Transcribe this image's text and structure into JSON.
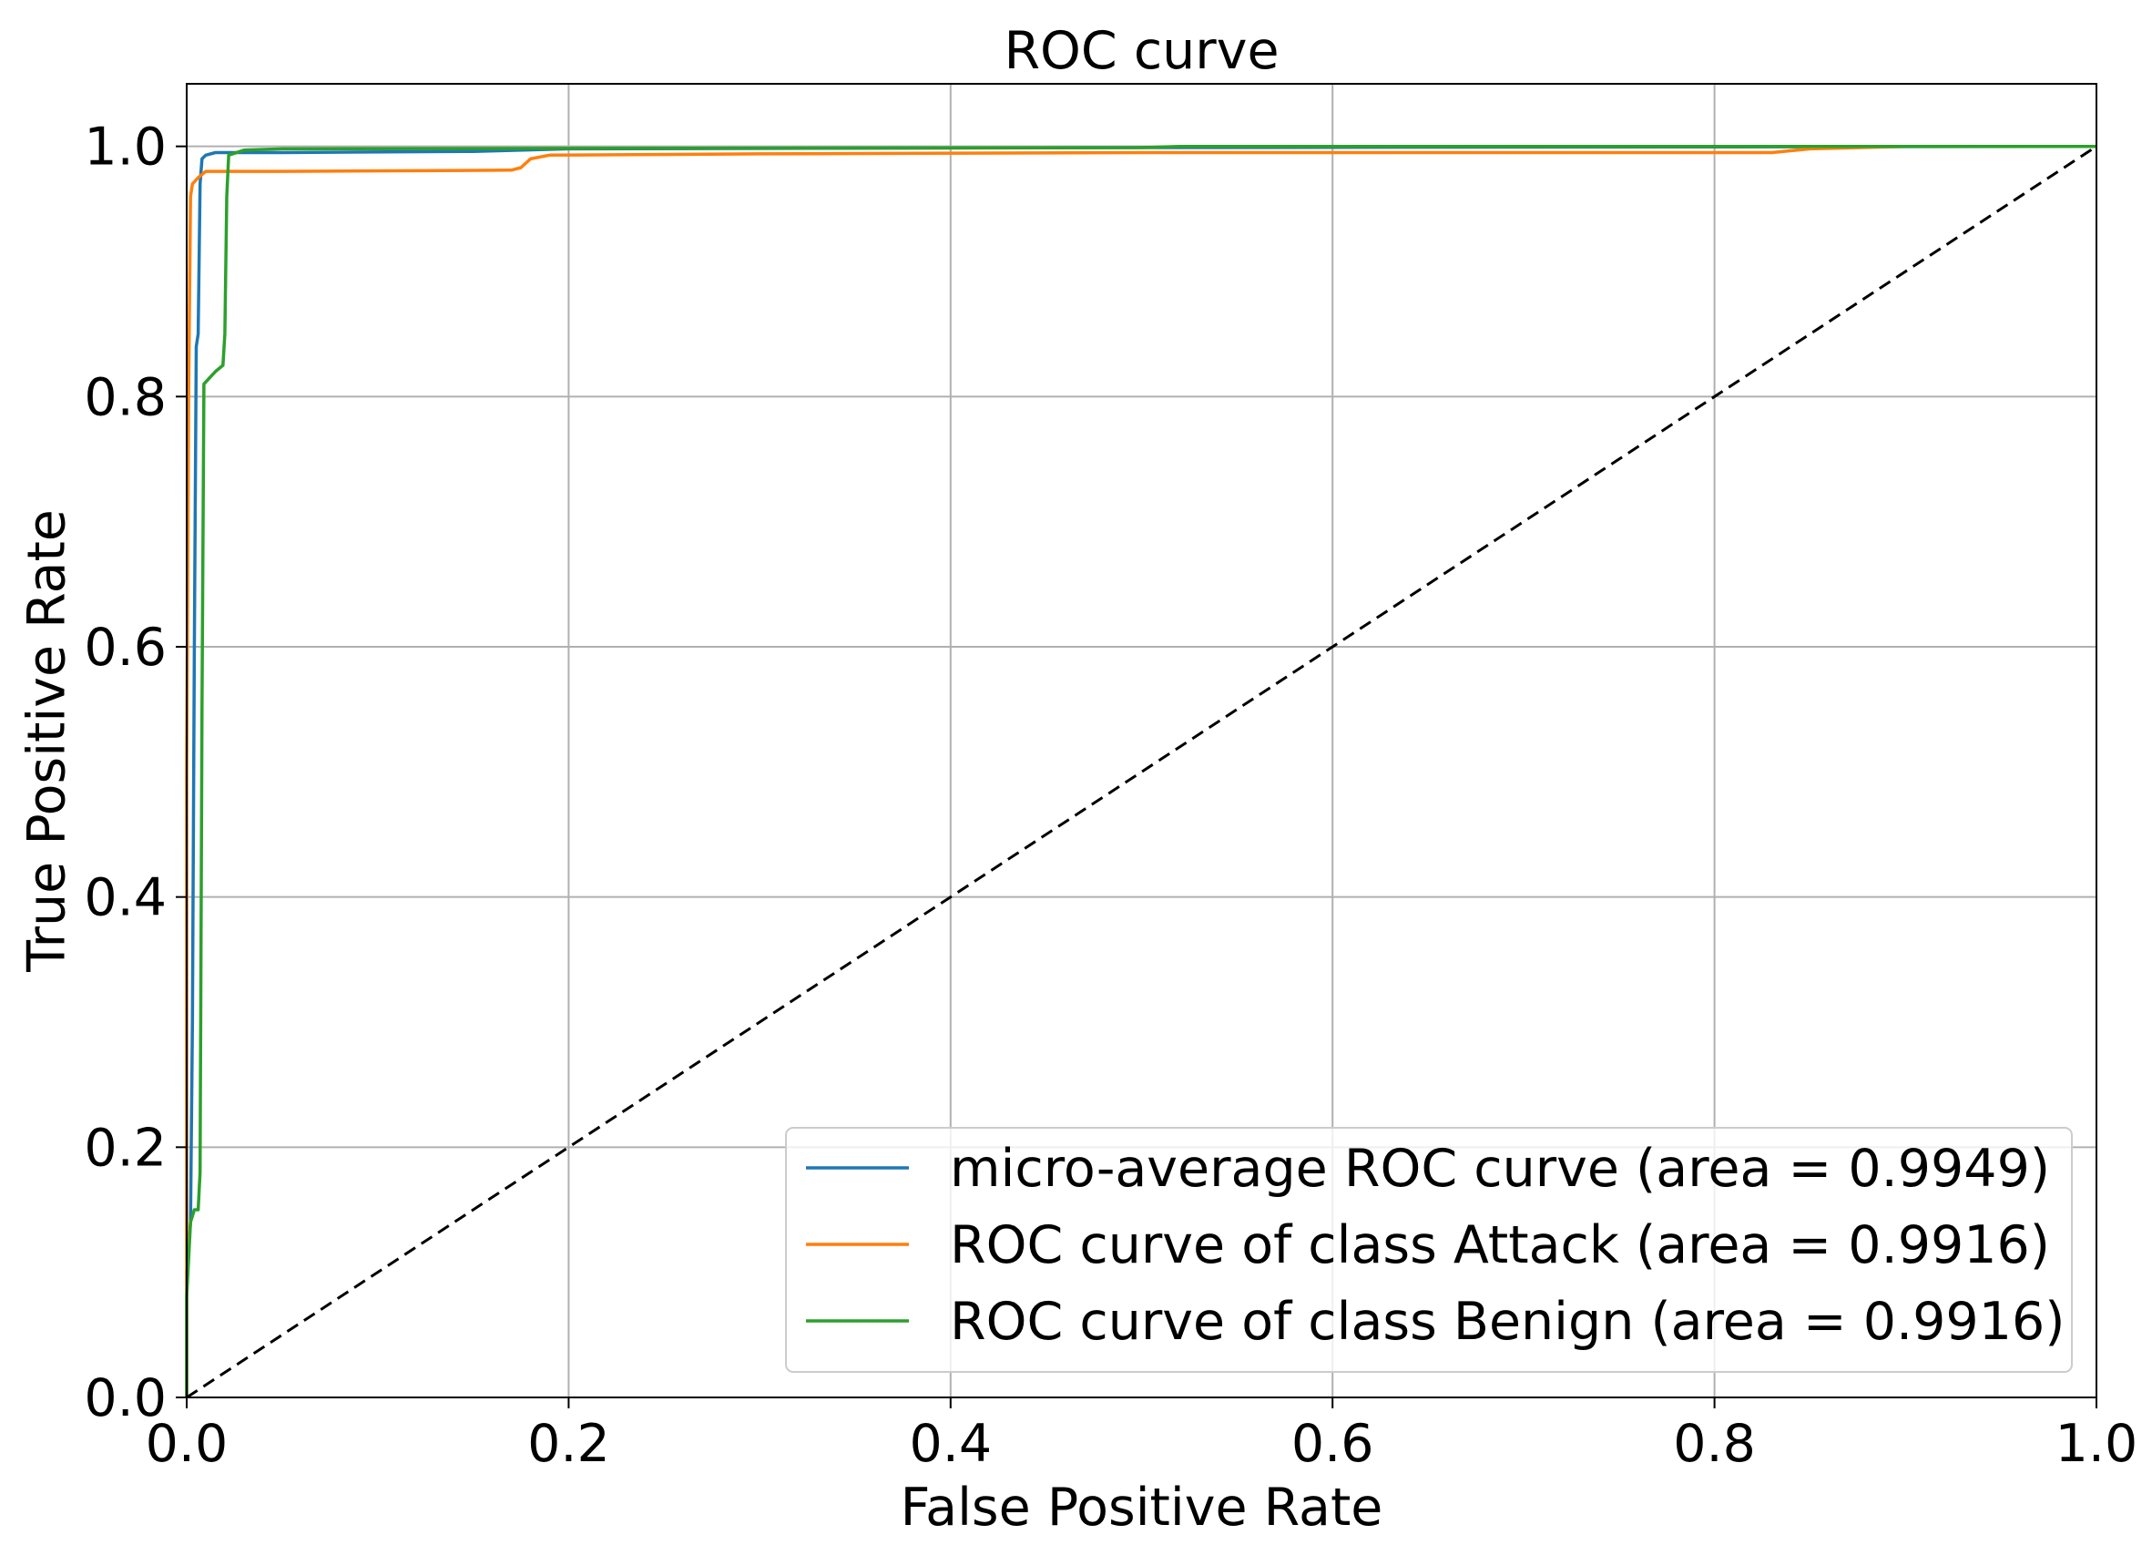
{
  "chart_data": {
    "type": "line",
    "title": "ROC curve",
    "xlabel": "False Positive Rate",
    "ylabel": "True Positive Rate",
    "xlim": [
      0.0,
      1.0
    ],
    "ylim": [
      0.0,
      1.05
    ],
    "x_ticks": [
      "0.0",
      "0.2",
      "0.4",
      "0.6",
      "0.8",
      "1.0"
    ],
    "y_ticks": [
      "0.0",
      "0.2",
      "0.4",
      "0.6",
      "0.8",
      "1.0"
    ],
    "grid": true,
    "legend_position": "lower-right",
    "series": [
      {
        "name": "micro-average ROC curve (area = 0.9949)",
        "color": "#1f77b4",
        "style": "solid",
        "points": [
          [
            0.0,
            0.0
          ],
          [
            0.0,
            0.1
          ],
          [
            0.002,
            0.14
          ],
          [
            0.003,
            0.3
          ],
          [
            0.004,
            0.6
          ],
          [
            0.005,
            0.84
          ],
          [
            0.006,
            0.85
          ],
          [
            0.007,
            0.97
          ],
          [
            0.008,
            0.99
          ],
          [
            0.01,
            0.993
          ],
          [
            0.015,
            0.995
          ],
          [
            0.05,
            0.995
          ],
          [
            0.15,
            0.996
          ],
          [
            0.2,
            0.998
          ],
          [
            0.5,
            0.999
          ],
          [
            1.0,
            1.0
          ]
        ]
      },
      {
        "name": "ROC curve of class Attack (area = 0.9916)",
        "color": "#ff7f0e",
        "style": "solid",
        "points": [
          [
            0.0,
            0.0
          ],
          [
            0.0,
            0.5
          ],
          [
            0.001,
            0.8
          ],
          [
            0.002,
            0.96
          ],
          [
            0.003,
            0.97
          ],
          [
            0.006,
            0.975
          ],
          [
            0.01,
            0.98
          ],
          [
            0.05,
            0.98
          ],
          [
            0.17,
            0.981
          ],
          [
            0.175,
            0.983
          ],
          [
            0.18,
            0.99
          ],
          [
            0.19,
            0.993
          ],
          [
            0.3,
            0.994
          ],
          [
            0.5,
            0.995
          ],
          [
            0.83,
            0.995
          ],
          [
            0.85,
            0.998
          ],
          [
            0.9,
            1.0
          ],
          [
            1.0,
            1.0
          ]
        ]
      },
      {
        "name": "ROC curve of class Benign (area = 0.9916)",
        "color": "#2ca02c",
        "style": "solid",
        "points": [
          [
            0.0,
            0.0
          ],
          [
            0.0,
            0.08
          ],
          [
            0.002,
            0.14
          ],
          [
            0.004,
            0.15
          ],
          [
            0.006,
            0.15
          ],
          [
            0.007,
            0.18
          ],
          [
            0.008,
            0.55
          ],
          [
            0.009,
            0.81
          ],
          [
            0.012,
            0.815
          ],
          [
            0.015,
            0.82
          ],
          [
            0.019,
            0.825
          ],
          [
            0.02,
            0.85
          ],
          [
            0.021,
            0.96
          ],
          [
            0.022,
            0.993
          ],
          [
            0.03,
            0.997
          ],
          [
            0.05,
            0.998
          ],
          [
            0.5,
            0.999
          ],
          [
            0.52,
            1.0
          ],
          [
            1.0,
            1.0
          ]
        ]
      },
      {
        "name": "",
        "color": "#000000",
        "style": "dashed",
        "points": [
          [
            0.0,
            0.0
          ],
          [
            1.0,
            1.0
          ]
        ]
      }
    ]
  }
}
